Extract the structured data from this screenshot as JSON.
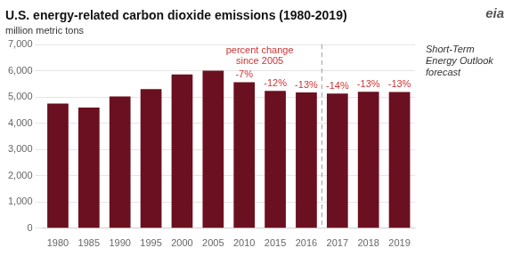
{
  "chart_data": {
    "type": "bar",
    "title": "U.S. energy-related carbon dioxide emissions (1980-2019)",
    "subtitle": "million metric tons",
    "categories": [
      "1980",
      "1985",
      "1990",
      "1995",
      "2000",
      "2005",
      "2010",
      "2015",
      "2016",
      "2017",
      "2018",
      "2019"
    ],
    "values": [
      4750,
      4600,
      5020,
      5300,
      5860,
      6000,
      5560,
      5230,
      5170,
      5130,
      5200,
      5190
    ],
    "color": "#6B1020",
    "ylim": [
      0,
      7000
    ],
    "yticks": [
      0,
      {
        "value": 1000,
        "label": "1,000"
      },
      {
        "value": 2000,
        "label": "2,000"
      },
      {
        "value": 3000,
        "label": "3,000"
      },
      {
        "value": 4000,
        "label": "4,000"
      },
      {
        "value": 5000,
        "label": "5,000"
      },
      {
        "value": 6000,
        "label": "6,000"
      },
      {
        "value": 7000,
        "label": "7,000"
      }
    ],
    "grid": true,
    "legend": false,
    "annotations": [
      {
        "kind": "label",
        "category": "2010",
        "text": "-7%",
        "color": "#cc3333"
      },
      {
        "kind": "label",
        "category": "2015",
        "text": "-12%",
        "color": "#cc3333"
      },
      {
        "kind": "label",
        "category": "2016",
        "text": "-13%",
        "color": "#cc3333"
      },
      {
        "kind": "label",
        "category": "2017",
        "text": "-14%",
        "color": "#cc3333"
      },
      {
        "kind": "label",
        "category": "2018",
        "text": "-13%",
        "color": "#cc3333"
      },
      {
        "kind": "label",
        "category": "2019",
        "text": "-13%",
        "color": "#cc3333"
      },
      {
        "kind": "note",
        "text": "percent change\nsince 2005",
        "color": "#cc3333"
      },
      {
        "kind": "forecast",
        "start": "2017",
        "text": "Short-Term\nEnergy Outlook\nforecast",
        "line_style": "dashed"
      },
      {
        "kind": "logo",
        "text": "eia"
      }
    ]
  }
}
